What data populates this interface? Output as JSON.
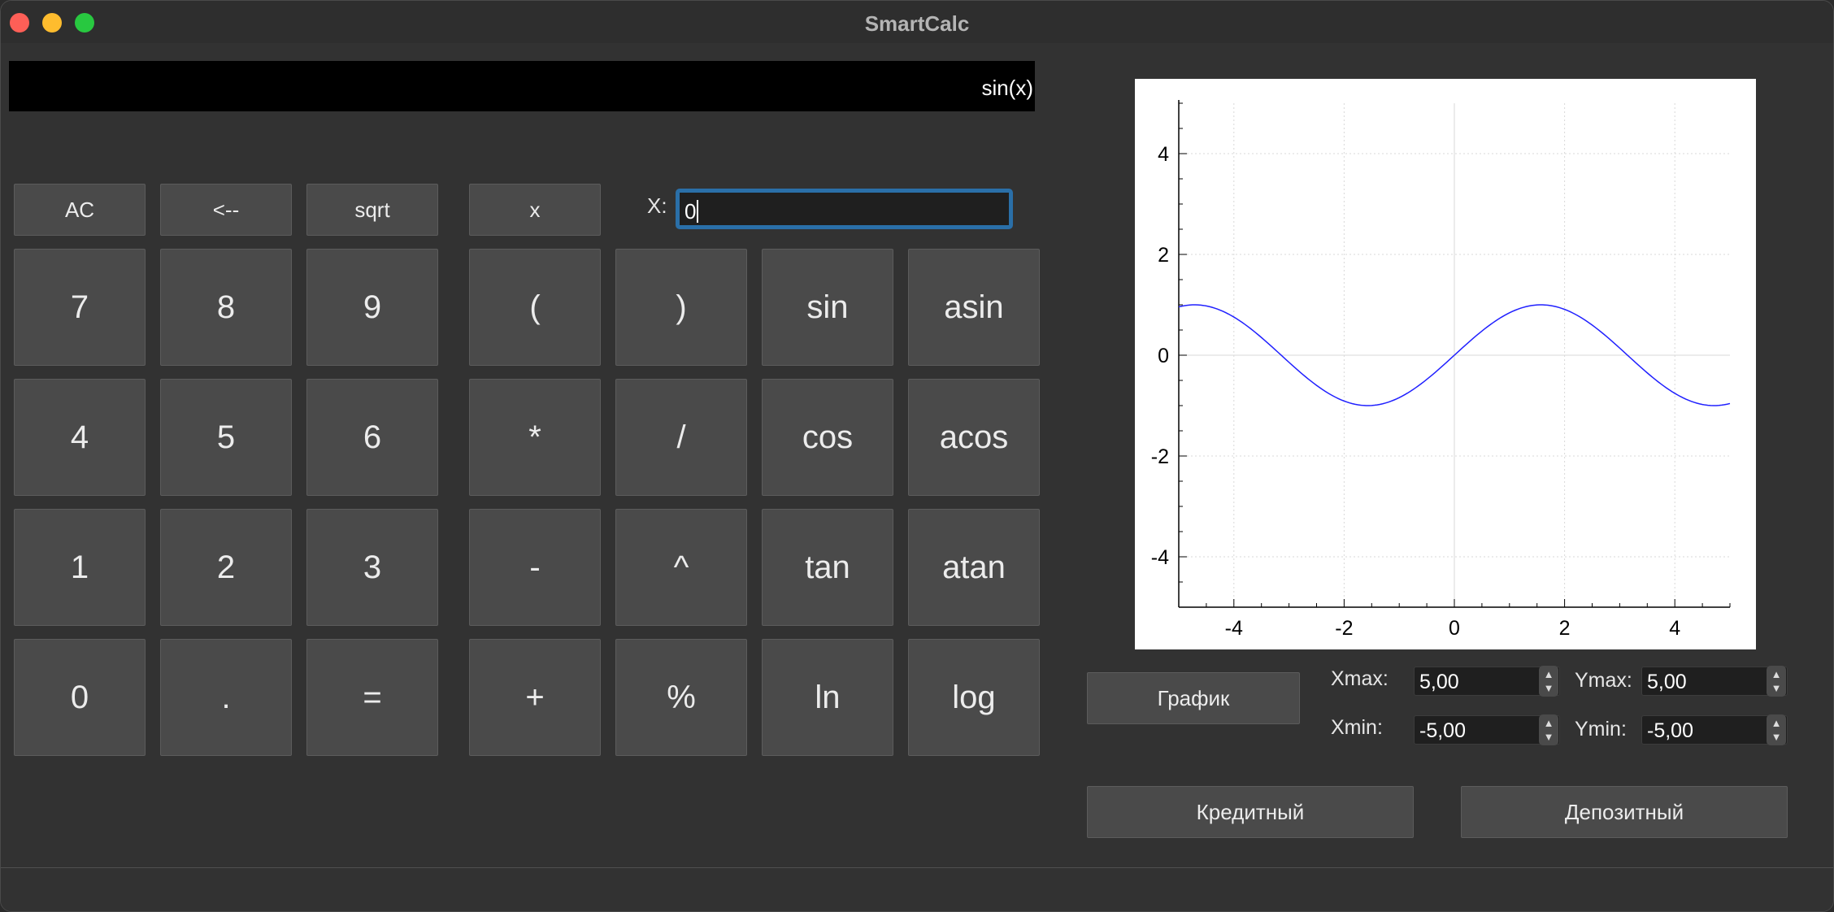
{
  "window": {
    "title": "SmartCalc"
  },
  "display": {
    "expression": "sin(x)"
  },
  "controls": {
    "ac": "AC",
    "backspace": "<--",
    "sqrt": "sqrt",
    "x_button": "x",
    "x_label": "X:",
    "x_value": "0"
  },
  "keypad": {
    "row1": [
      "7",
      "8",
      "9",
      "(",
      ")",
      "sin",
      "asin"
    ],
    "row2": [
      "4",
      "5",
      "6",
      "*",
      "/",
      "cos",
      "acos"
    ],
    "row3": [
      "1",
      "2",
      "3",
      "-",
      "^",
      "tan",
      "atan"
    ],
    "row4": [
      "0",
      ".",
      "=",
      "+",
      "%",
      "ln",
      "log"
    ]
  },
  "graph_panel": {
    "plot_button": "График",
    "xmax_label": "Xmax:",
    "xmax_value": "5,00",
    "xmin_label": "Xmin:",
    "xmin_value": "-5,00",
    "ymax_label": "Ymax:",
    "ymax_value": "5,00",
    "ymin_label": "Ymin:",
    "ymin_value": "-5,00"
  },
  "bottom_buttons": {
    "credit": "Кредитный",
    "deposit": "Депозитный"
  },
  "chart_data": {
    "type": "line",
    "function": "sin(x)",
    "xlim": [
      -5,
      5
    ],
    "ylim": [
      -5,
      5
    ],
    "x_ticks": [
      "-4",
      "-2",
      "0",
      "2",
      "4"
    ],
    "y_ticks": [
      "4",
      "2",
      "0",
      "-2",
      "-4"
    ],
    "x_tick_values": [
      -4,
      -2,
      0,
      2,
      4
    ],
    "y_tick_values": [
      4,
      2,
      0,
      -2,
      -4
    ],
    "grid": true,
    "series": [
      {
        "color": "#2020ff",
        "x_start": -5,
        "x_end": 5,
        "samples": 201
      }
    ]
  }
}
